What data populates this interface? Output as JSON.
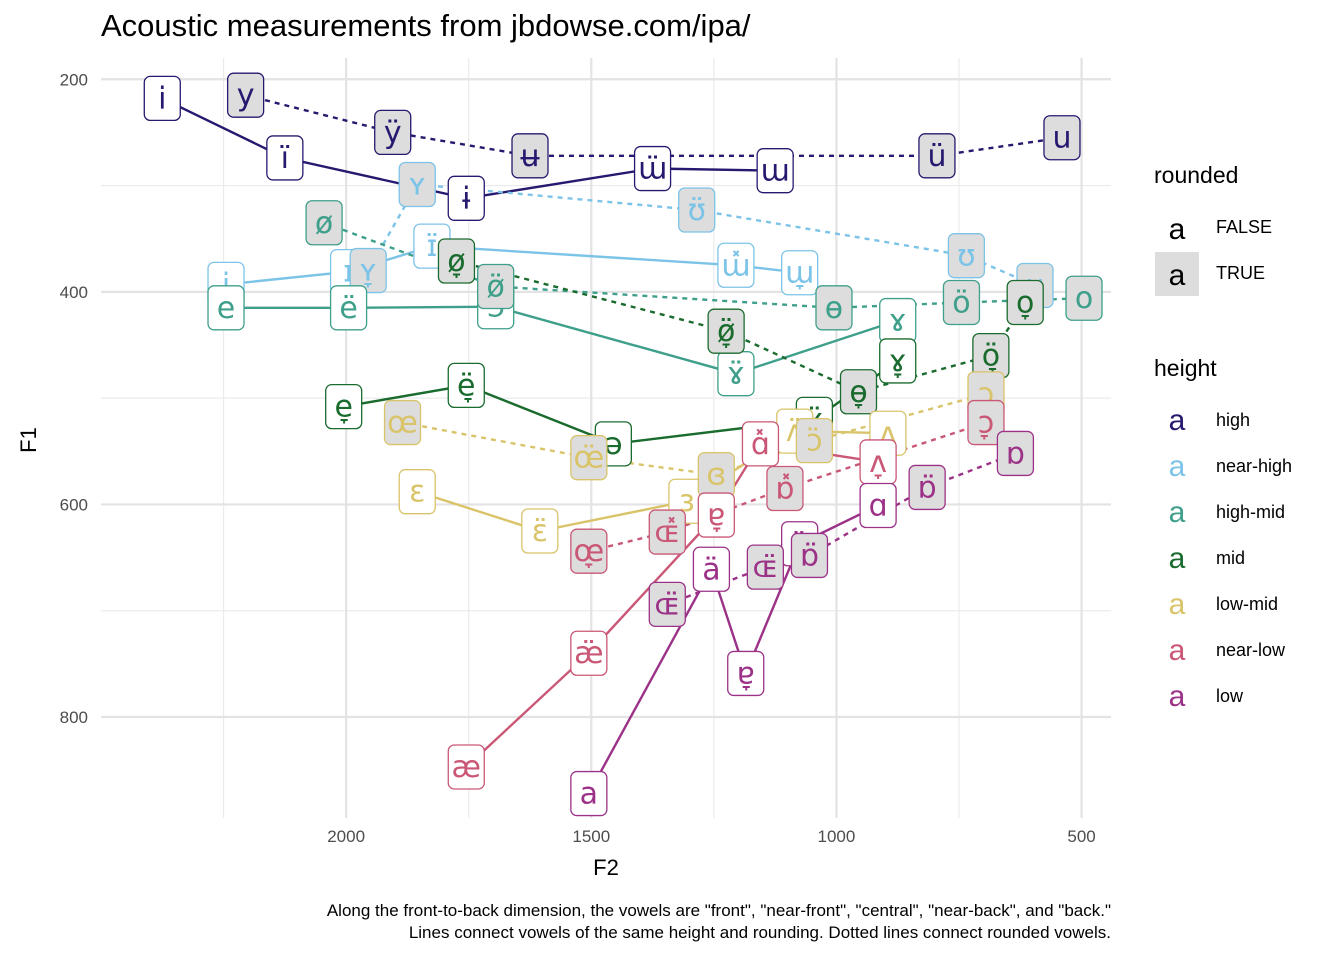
{
  "title": "Acoustic measurements from jbdowse.com/ipa/",
  "caption": {
    "line1": "Along the front-to-back dimension, the vowels are \"front\", \"near-front\", \"central\", \"near-back\", and \"back.\"",
    "line2": "Lines connect vowels of the same height and rounding. Dotted lines connect rounded vowels."
  },
  "legend": {
    "rounded_title": "rounded",
    "rounded_items": [
      {
        "label": "FALSE",
        "glyph": "a",
        "fill": "#ffffff"
      },
      {
        "label": "TRUE",
        "glyph": "a",
        "fill": "#dddddd"
      }
    ],
    "height_title": "height",
    "height_items": [
      {
        "label": "high",
        "glyph": "a",
        "color": "#26196f"
      },
      {
        "label": "near-high",
        "glyph": "a",
        "color": "#7cc3e8"
      },
      {
        "label": "high-mid",
        "glyph": "a",
        "color": "#3e9f8a"
      },
      {
        "label": "mid",
        "glyph": "a",
        "color": "#1a6b2e"
      },
      {
        "label": "low-mid",
        "glyph": "a",
        "color": "#d9c46a"
      },
      {
        "label": "near-low",
        "glyph": "a",
        "color": "#c95775"
      },
      {
        "label": "low",
        "glyph": "a",
        "color": "#9b3287"
      }
    ]
  },
  "chart_data": {
    "type": "scatter",
    "title": "Acoustic measurements from jbdowse.com/ipa/",
    "xlabel": "F2",
    "ylabel": "F1",
    "x_reversed": true,
    "y_reversed": true,
    "xlim": [
      2500,
      440
    ],
    "ylim": [
      180,
      895
    ],
    "x_ticks": [
      2000,
      1500,
      1000,
      500
    ],
    "x_tick_labels": [
      "2000",
      "1500",
      "1000",
      "500"
    ],
    "y_ticks": [
      200,
      400,
      600,
      800
    ],
    "y_tick_labels": [
      "200",
      "400",
      "600",
      "800"
    ],
    "grid": true,
    "legend_position": "right",
    "series": [
      {
        "name": "high",
        "rounded": false,
        "color": "#26196f",
        "dotted": false,
        "points": [
          {
            "label": "i",
            "F2": 2375,
            "F1": 218
          },
          {
            "label": "ï",
            "F2": 2125,
            "F1": 274
          },
          {
            "label": "ɨ",
            "F2": 1755,
            "F1": 312
          },
          {
            "label": "ɯ̈",
            "F2": 1375,
            "F1": 284
          },
          {
            "label": "ɯ",
            "F2": 1125,
            "F1": 286
          }
        ]
      },
      {
        "name": "high",
        "rounded": true,
        "color": "#26196f",
        "dotted": true,
        "points": [
          {
            "label": "y",
            "F2": 2205,
            "F1": 215
          },
          {
            "label": "ÿ",
            "F2": 1905,
            "F1": 250
          },
          {
            "label": "ʉ",
            "F2": 1625,
            "F1": 272
          },
          {
            "label": "ü",
            "F2": 795,
            "F1": 272
          },
          {
            "label": "u",
            "F2": 540,
            "F1": 255
          }
        ]
      },
      {
        "name": "near-high",
        "rounded": false,
        "color": "#7cc3e8",
        "dotted": false,
        "points": [
          {
            "label": "i̞",
            "F2": 2245,
            "F1": 393
          },
          {
            "label": "ɪ",
            "F2": 1995,
            "F1": 381
          },
          {
            "label": "ɪ̈",
            "F2": 1825,
            "F1": 357
          },
          {
            "label": "ɯ̽",
            "F2": 1205,
            "F1": 375
          },
          {
            "label": "ɯ̞",
            "F2": 1075,
            "F1": 382
          }
        ]
      },
      {
        "name": "near-high",
        "rounded": true,
        "color": "#7cc3e8",
        "dotted": true,
        "points": [
          {
            "label": "ʏ̞",
            "F2": 1955,
            "F1": 380
          },
          {
            "label": "ʏ",
            "F2": 1855,
            "F1": 299
          },
          {
            "label": "ʊ̈",
            "F2": 1285,
            "F1": 323
          },
          {
            "label": "ʊ",
            "F2": 735,
            "F1": 366
          },
          {
            "label": "u̞",
            "F2": 595,
            "F1": 394
          }
        ]
      },
      {
        "name": "high-mid",
        "rounded": false,
        "color": "#3e9f8a",
        "dotted": false,
        "points": [
          {
            "label": "e",
            "F2": 2245,
            "F1": 415
          },
          {
            "label": "ë",
            "F2": 1995,
            "F1": 415
          },
          {
            "label": "ɘ",
            "F2": 1695,
            "F1": 414
          },
          {
            "label": "ɤ̈",
            "F2": 1205,
            "F1": 477
          },
          {
            "label": "ɤ",
            "F2": 875,
            "F1": 427
          }
        ]
      },
      {
        "name": "high-mid",
        "rounded": true,
        "color": "#3e9f8a",
        "dotted": true,
        "points": [
          {
            "label": "ø",
            "F2": 2045,
            "F1": 335
          },
          {
            "label": "ø̈",
            "F2": 1695,
            "F1": 395
          },
          {
            "label": "ɵ",
            "F2": 1005,
            "F1": 415
          },
          {
            "label": "ö",
            "F2": 745,
            "F1": 410
          },
          {
            "label": "o",
            "F2": 495,
            "F1": 406
          }
        ]
      },
      {
        "name": "mid",
        "rounded": false,
        "color": "#1a6b2e",
        "dotted": false,
        "points": [
          {
            "label": "e̞",
            "F2": 2005,
            "F1": 508
          },
          {
            "label": "ë̞",
            "F2": 1755,
            "F1": 488
          },
          {
            "label": "ə",
            "F2": 1455,
            "F1": 543
          },
          {
            "label": "ɤ̞̈",
            "F2": 1045,
            "F1": 520
          },
          {
            "label": "ɤ̞",
            "F2": 875,
            "F1": 465
          }
        ]
      },
      {
        "name": "mid",
        "rounded": true,
        "color": "#1a6b2e",
        "dotted": true,
        "points": [
          {
            "label": "ø̞",
            "F2": 1775,
            "F1": 371
          },
          {
            "label": "ø̞̈",
            "F2": 1225,
            "F1": 437
          },
          {
            "label": "ɵ̞",
            "F2": 955,
            "F1": 494
          },
          {
            "label": "ö̞",
            "F2": 685,
            "F1": 460
          },
          {
            "label": "o̞",
            "F2": 615,
            "F1": 410
          }
        ]
      },
      {
        "name": "low-mid",
        "rounded": false,
        "color": "#d9c46a",
        "dotted": false,
        "points": [
          {
            "label": "ɛ",
            "F2": 1855,
            "F1": 588
          },
          {
            "label": "ɛ̈",
            "F2": 1605,
            "F1": 625
          },
          {
            "label": "ɜ",
            "F2": 1305,
            "F1": 597
          },
          {
            "label": "ʌ̈",
            "F2": 1085,
            "F1": 531
          },
          {
            "label": "ʌ",
            "F2": 895,
            "F1": 533
          }
        ]
      },
      {
        "name": "low-mid",
        "rounded": true,
        "color": "#d9c46a",
        "dotted": true,
        "points": [
          {
            "label": "œ",
            "F2": 1885,
            "F1": 523
          },
          {
            "label": "œ̈",
            "F2": 1505,
            "F1": 556
          },
          {
            "label": "ɞ",
            "F2": 1245,
            "F1": 572
          },
          {
            "label": "ɔ̈",
            "F2": 1045,
            "F1": 540
          },
          {
            "label": "ɔ",
            "F2": 695,
            "F1": 496
          }
        ]
      },
      {
        "name": "near-low",
        "rounded": false,
        "color": "#c95775",
        "dotted": false,
        "points": [
          {
            "label": "æ",
            "F2": 1755,
            "F1": 847
          },
          {
            "label": "æ̈",
            "F2": 1505,
            "F1": 740
          },
          {
            "label": "ɐ̞",
            "F2": 1245,
            "F1": 610
          },
          {
            "label": "ɑ̽",
            "F2": 1155,
            "F1": 543
          },
          {
            "label": "ʌ̞",
            "F2": 915,
            "F1": 560
          }
        ]
      },
      {
        "name": "near-low",
        "rounded": true,
        "color": "#c95775",
        "dotted": true,
        "points": [
          {
            "label": "œ̞",
            "F2": 1505,
            "F1": 644
          },
          {
            "label": "ɶ̽",
            "F2": 1345,
            "F1": 626
          },
          {
            "label": "ɒ̽",
            "F2": 1105,
            "F1": 585
          },
          {
            "label": "ɔ̞",
            "F2": 695,
            "F1": 523
          }
        ]
      },
      {
        "name": "low",
        "rounded": false,
        "color": "#9b3287",
        "dotted": false,
        "points": [
          {
            "label": "a",
            "F2": 1505,
            "F1": 872
          },
          {
            "label": "ä",
            "F2": 1255,
            "F1": 661
          },
          {
            "label": "ɐ̞",
            "F2": 1185,
            "F1": 759
          },
          {
            "label": "ɑ̈",
            "F2": 1075,
            "F1": 637
          },
          {
            "label": "ɑ",
            "F2": 915,
            "F1": 601
          }
        ]
      },
      {
        "name": "low",
        "rounded": true,
        "color": "#9b3287",
        "dotted": true,
        "points": [
          {
            "label": "ɶ̈",
            "F2": 1345,
            "F1": 694
          },
          {
            "label": "ɶ̈",
            "F2": 1145,
            "F1": 659
          },
          {
            "label": "ɒ̈",
            "F2": 1055,
            "F1": 648
          },
          {
            "label": "ɒ̈",
            "F2": 815,
            "F1": 584
          },
          {
            "label": "ɒ",
            "F2": 635,
            "F1": 552
          }
        ]
      }
    ]
  }
}
